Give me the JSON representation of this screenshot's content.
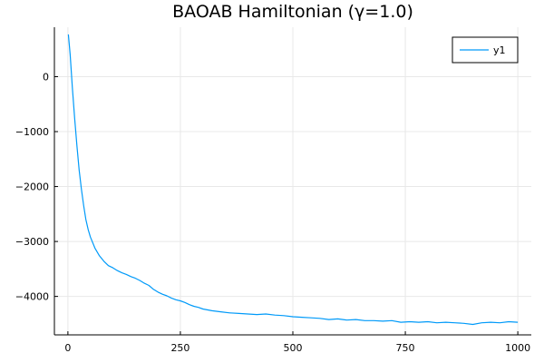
{
  "chart_data": {
    "type": "line",
    "title": "BAOAB Hamiltonian (γ=1.0)",
    "xlabel": "",
    "ylabel": "",
    "xlim": [
      -30,
      1030
    ],
    "ylim": [
      -4700,
      900
    ],
    "x_ticks": [
      0,
      250,
      500,
      750,
      1000
    ],
    "x_tick_labels": [
      "0",
      "250",
      "500",
      "750",
      "1000"
    ],
    "y_ticks": [
      0,
      -1000,
      -2000,
      -3000,
      -4000
    ],
    "y_tick_labels": [
      "0",
      "−1000",
      "−2000",
      "−3000",
      "−4000"
    ],
    "grid": true,
    "legend": {
      "position": "top-right",
      "entries": [
        "y1"
      ]
    },
    "colors": {
      "series": "#009af9",
      "grid": "#e8e8e8",
      "axis": "#000000"
    },
    "series": [
      {
        "name": "y1",
        "x": [
          1,
          5,
          10,
          15,
          20,
          25,
          30,
          35,
          40,
          45,
          50,
          60,
          70,
          80,
          90,
          100,
          110,
          120,
          130,
          140,
          150,
          160,
          170,
          180,
          190,
          200,
          210,
          220,
          230,
          240,
          250,
          260,
          270,
          280,
          290,
          300,
          320,
          340,
          360,
          380,
          400,
          420,
          440,
          460,
          480,
          500,
          520,
          540,
          560,
          580,
          600,
          620,
          640,
          660,
          680,
          700,
          720,
          740,
          760,
          780,
          800,
          820,
          840,
          860,
          880,
          900,
          920,
          940,
          960,
          980,
          1000
        ],
        "values": [
          770,
          400,
          -200,
          -750,
          -1250,
          -1700,
          -2050,
          -2350,
          -2600,
          -2780,
          -2920,
          -3120,
          -3260,
          -3360,
          -3440,
          -3480,
          -3530,
          -3570,
          -3600,
          -3640,
          -3670,
          -3710,
          -3760,
          -3800,
          -3870,
          -3920,
          -3960,
          -3990,
          -4030,
          -4060,
          -4080,
          -4110,
          -4150,
          -4180,
          -4200,
          -4230,
          -4260,
          -4280,
          -4300,
          -4310,
          -4320,
          -4330,
          -4320,
          -4340,
          -4350,
          -4370,
          -4380,
          -4390,
          -4400,
          -4420,
          -4410,
          -4430,
          -4420,
          -4440,
          -4440,
          -4450,
          -4440,
          -4470,
          -4460,
          -4470,
          -4460,
          -4480,
          -4470,
          -4480,
          -4490,
          -4510,
          -4480,
          -4470,
          -4480,
          -4460,
          -4470
        ]
      }
    ]
  }
}
